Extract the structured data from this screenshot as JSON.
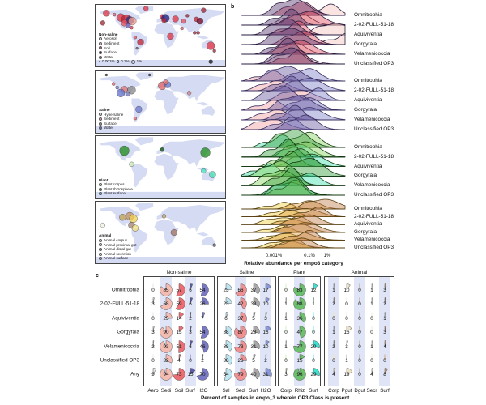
{
  "panel_labels": {
    "a": "a",
    "b": "b",
    "c": "c"
  },
  "maps": [
    {
      "title": "Non-saline",
      "legend": [
        {
          "label": "Aerosol",
          "color": "#f3ece8"
        },
        {
          "label": "Sediment",
          "color": "#f4c4bc"
        },
        {
          "label": "Soil",
          "color": "#e05060"
        },
        {
          "label": "Surface",
          "color": "#3a2a70"
        },
        {
          "label": "Water",
          "color": "#7a6ab0"
        }
      ],
      "size_legend": [
        "0.001%",
        "0.1%",
        "1%"
      ],
      "points": [
        {
          "lon": -150,
          "lat": 62,
          "c": "#e03040",
          "s": 4
        },
        {
          "lon": -128,
          "lat": 58,
          "c": "#e06070",
          "s": 2
        },
        {
          "lon": -110,
          "lat": 50,
          "c": "#e03040",
          "s": 5
        },
        {
          "lon": -95,
          "lat": 45,
          "c": "#c02030",
          "s": 6
        },
        {
          "lon": -85,
          "lat": 42,
          "c": "#2a2a80",
          "s": 5
        },
        {
          "lon": -78,
          "lat": 40,
          "c": "#f0a090",
          "s": 5
        },
        {
          "lon": -100,
          "lat": 35,
          "c": "#e05060",
          "s": 4
        },
        {
          "lon": -90,
          "lat": 28,
          "c": "#6a5ab0",
          "s": 3
        },
        {
          "lon": -80,
          "lat": 22,
          "c": "#e03040",
          "s": 2
        },
        {
          "lon": -160,
          "lat": 35,
          "c": "#a02030",
          "s": 3
        },
        {
          "lon": -70,
          "lat": -5,
          "c": "#e05060",
          "s": 2
        },
        {
          "lon": -55,
          "lat": -18,
          "c": "#c02030",
          "s": 4
        },
        {
          "lon": -65,
          "lat": -35,
          "c": "#555",
          "s": 1.5
        },
        {
          "lon": -40,
          "lat": 75,
          "c": "#e03040",
          "s": 3
        },
        {
          "lon": 5,
          "lat": 52,
          "c": "#e03040",
          "s": 3
        },
        {
          "lon": 14,
          "lat": 48,
          "c": "#1a1a80",
          "s": 5
        },
        {
          "lon": 10,
          "lat": 42,
          "c": "#c02030",
          "s": 3
        },
        {
          "lon": 42,
          "lat": 46,
          "c": "#e03040",
          "s": 4
        },
        {
          "lon": 65,
          "lat": 40,
          "c": "#e05060",
          "s": 3
        },
        {
          "lon": 75,
          "lat": 55,
          "c": "#a02030",
          "s": 2
        },
        {
          "lon": 100,
          "lat": 45,
          "c": "#c02030",
          "s": 3
        },
        {
          "lon": 110,
          "lat": 40,
          "c": "#700020",
          "s": 4
        },
        {
          "lon": 120,
          "lat": 70,
          "c": "#a02030",
          "s": 3
        },
        {
          "lon": 28,
          "lat": -2,
          "c": "#e03040",
          "s": 4
        },
        {
          "lon": 60,
          "lat": 20,
          "c": "#e05060",
          "s": 2
        },
        {
          "lon": 95,
          "lat": 8,
          "c": "#a02030",
          "s": 2
        },
        {
          "lon": 105,
          "lat": 8,
          "c": "#a02030",
          "s": 2
        },
        {
          "lon": 140,
          "lat": -28,
          "c": "#e03040",
          "s": 5
        },
        {
          "lon": 150,
          "lat": -42,
          "c": "#a02030",
          "s": 2
        },
        {
          "lon": 140,
          "lat": -72,
          "c": "#111",
          "s": 2.5
        }
      ]
    },
    {
      "title": "Saline",
      "legend": [
        {
          "label": "Hypersaline",
          "color": "#e6f0f4"
        },
        {
          "label": "Sediment",
          "color": "#f0a0a0"
        },
        {
          "label": "Surface",
          "color": "#999999"
        },
        {
          "label": "Water",
          "color": "#6a78c8"
        }
      ],
      "points": [
        {
          "lon": -130,
          "lat": 50,
          "c": "#e06070",
          "s": 2
        },
        {
          "lon": -120,
          "lat": 40,
          "c": "#8080c0",
          "s": 2
        },
        {
          "lon": -100,
          "lat": 35,
          "c": "#e07070",
          "s": 4
        },
        {
          "lon": -110,
          "lat": 25,
          "c": "#6070c8",
          "s": 5
        },
        {
          "lon": -80,
          "lat": 33,
          "c": "#888",
          "s": 5
        },
        {
          "lon": -90,
          "lat": 22,
          "c": "#7070b0",
          "s": 2.5
        },
        {
          "lon": -60,
          "lat": -20,
          "c": "#6a78c8",
          "s": 4
        },
        {
          "lon": -70,
          "lat": -45,
          "c": "#e07070",
          "s": 2
        },
        {
          "lon": 5,
          "lat": 45,
          "c": "#e06060",
          "s": 5
        },
        {
          "lon": 20,
          "lat": 48,
          "c": "#6a78c8",
          "s": 4
        },
        {
          "lon": 15,
          "lat": 55,
          "c": "#e07070",
          "s": 3
        },
        {
          "lon": 80,
          "lat": 25,
          "c": "#d08080",
          "s": 2.5
        },
        {
          "lon": -150,
          "lat": 75,
          "c": "#222",
          "s": 1.5
        },
        {
          "lon": -30,
          "lat": 75,
          "c": "#222",
          "s": 1.5
        }
      ]
    },
    {
      "title": "Plant",
      "legend": [
        {
          "label": "Plant corpus",
          "color": "#cfeec0"
        },
        {
          "label": "Plant rhizosphere",
          "color": "#2e9a2e"
        },
        {
          "label": "Plant surface",
          "color": "#40e0c0"
        }
      ],
      "points": [
        {
          "lon": -100,
          "lat": 45,
          "c": "#1a8a1a",
          "s": 6
        },
        {
          "lon": -80,
          "lat": 8,
          "c": "#c8e8b8",
          "s": 3
        },
        {
          "lon": 5,
          "lat": 48,
          "c": "#0a4a0a",
          "s": 2.5
        },
        {
          "lon": 125,
          "lat": 40,
          "c": "#1a8a1a",
          "s": 6
        },
        {
          "lon": 120,
          "lat": -10,
          "c": "#40e0c0",
          "s": 3
        },
        {
          "lon": 145,
          "lat": -20,
          "c": "#40e0b0",
          "s": 4
        }
      ]
    },
    {
      "title": "Animal",
      "legend": [
        {
          "label": "Animal corpus",
          "color": "#f7ecb0"
        },
        {
          "label": "Animal proximal gut",
          "color": "#f2e6c8"
        },
        {
          "label": "Animal distal gut",
          "color": "#b08860"
        },
        {
          "label": "Animal secretion",
          "color": "#f6f0e8"
        },
        {
          "label": "Animal surface",
          "color": "#d0a070"
        }
      ],
      "points": [
        {
          "lon": -105,
          "lat": 42,
          "c": "#c0a050",
          "s": 4
        },
        {
          "lon": -85,
          "lat": 45,
          "c": "#c09060",
          "s": 5
        },
        {
          "lon": -75,
          "lat": 38,
          "c": "#f0d050",
          "s": 5
        },
        {
          "lon": -80,
          "lat": 20,
          "c": "#a08070",
          "s": 4
        },
        {
          "lon": -70,
          "lat": 12,
          "c": "#f0e080",
          "s": 4
        },
        {
          "lon": -160,
          "lat": 20,
          "c": "#f0f0e0",
          "s": 3
        },
        {
          "lon": 10,
          "lat": 45,
          "c": "#c0a070",
          "s": 2.5
        },
        {
          "lon": 38,
          "lat": 0,
          "c": "#a07060",
          "s": 4
        },
        {
          "lon": 150,
          "lat": -35,
          "c": "#555",
          "s": 2
        }
      ]
    }
  ],
  "ridges": {
    "xlabel": "Relative abundance per empo3 category",
    "ticks": [
      {
        "label": "0.001%",
        "log": -5
      },
      {
        "label": "0.1%",
        "log": -3
      },
      {
        "label": "1%",
        "log": -2
      }
    ],
    "classes": [
      "Omnitrophia",
      "2-02-FULL-51-18",
      "Aquiviventia",
      "Gorgyraia",
      "Velamenicoccia",
      "Unclassified OP3"
    ]
  },
  "chart_data": {
    "type": "ridgeline",
    "xlabel": "Relative abundance per empo3 category",
    "x_scale": "log10 relative abundance",
    "groups": [
      {
        "name": "Non-saline",
        "colors": [
          "#f4c4bc",
          "#e05060",
          "#5a3a70",
          "#3a2a70"
        ],
        "peaks": [
          [
            -1.8,
            -3.4,
            -3.8
          ],
          [
            -3.5,
            -3.0,
            -4.0
          ],
          [
            -1.5,
            -3.6,
            -4.2
          ],
          [
            -0.9,
            -3.3,
            -4.0
          ],
          [
            -3.8,
            -3.5,
            -4.2
          ],
          [
            -3.8,
            -3.6,
            -4.0
          ]
        ]
      },
      {
        "name": "Saline",
        "colors": [
          "#f0a0a0",
          "#8080c8",
          "#6a5aa0",
          "#c8d0e8"
        ],
        "peaks": [
          [
            -5.0,
            -3.0,
            -4.2
          ],
          [
            -4.8,
            -3.0,
            -4.0
          ],
          [
            -3.5,
            -2.5,
            -4.5
          ],
          [
            -5.0,
            -3.0,
            -3.6
          ],
          [
            -4.8,
            -3.0,
            -3.8
          ],
          [
            -5.0,
            -4.0,
            -3.2
          ]
        ]
      },
      {
        "name": "Plant",
        "colors": [
          "#40e0b0",
          "#8ad060",
          "#3aa040",
          "#a0d080"
        ],
        "peaks": [
          [
            -4.5,
            -3.0,
            -3.8
          ],
          [
            -3.5,
            -3.2,
            -4.2
          ],
          [
            -2.9,
            -4.0,
            -3.5
          ],
          [
            -5.2,
            -4.6,
            -3.0
          ],
          [
            -3.0,
            -4.5,
            -4.0
          ],
          [
            -4.0,
            -3.8,
            -3.9
          ]
        ]
      },
      {
        "name": "Animal",
        "colors": [
          "#f0d040",
          "#e0a040",
          "#c08050",
          "#f4e080"
        ],
        "peaks": [
          [
            -4.4,
            -3.0,
            -2.1
          ],
          [
            -4.2,
            -3.2,
            -2.5
          ],
          [
            -4.4,
            -3.6,
            -3.0
          ],
          [
            -4.5,
            -3.5,
            -3.2
          ],
          [
            -4.3,
            -3.6,
            -3.0
          ],
          [
            -4.2,
            -3.8,
            -3.4
          ]
        ]
      }
    ]
  },
  "table": {
    "title": "Percent of samples in empo_3 wherein OP3 Class is present",
    "rows": [
      "Omnitrophia",
      "2-02-FULL-51-18",
      "Aquiviventia",
      "Gorgyraia",
      "Velamenicoccia",
      "Unclassified OP3",
      "Any"
    ],
    "groups": [
      {
        "name": "Non-saline",
        "columns": [
          {
            "label": "Aero",
            "color": "#e8e0e0",
            "values": [
              0,
              3,
              0,
              3,
              2,
              0,
              9
            ]
          },
          {
            "label": "Sedi",
            "color": "#f2bcb2",
            "values": [
              85,
              68,
              25,
              90,
              93,
              32,
              94
            ]
          },
          {
            "label": "Soil",
            "color": "#ea6e74",
            "values": [
              57,
              59,
              14,
              13,
              51,
              4,
              73
            ]
          },
          {
            "label": "Surf",
            "color": "#5c5ca8",
            "values": [
              6,
              6,
              2,
              3,
              6,
              0,
              15
            ]
          },
          {
            "label": "H2O",
            "color": "#7a7ac4",
            "values": [
              54,
              26,
              7,
              54,
              46,
              2,
              70
            ]
          }
        ]
      },
      {
        "name": "Saline",
        "columns": [
          {
            "label": "Sal",
            "color": "#bfe6f0",
            "values": [
              23,
              23,
              6,
              38,
              38,
              38,
              54
            ]
          },
          {
            "label": "Sedi",
            "color": "#f09090",
            "values": [
              66,
              42,
              37,
              87,
              73,
              26,
              79
            ]
          },
          {
            "label": "Surf",
            "color": "#a8a8a8",
            "values": [
              37,
              33,
              5,
              28,
              31,
              5,
              40
            ]
          },
          {
            "label": "H2O",
            "color": "#8898d8",
            "values": [
              17,
              10,
              3,
              16,
              10,
              2,
              31
            ]
          }
        ]
      },
      {
        "name": "Plant",
        "columns": [
          {
            "label": "Corp",
            "color": "#c8eab8",
            "values": [
              0,
              1,
              1,
              0,
              1,
              0,
              3
            ]
          },
          {
            "label": "Rhiz",
            "color": "#6cbf6c",
            "values": [
              83,
              88,
              36,
              47,
              77,
              15,
              96
            ]
          },
          {
            "label": "Surf",
            "color": "#40e0d0",
            "values": [
              12,
              1,
              0,
              0,
              29,
              0,
              29
            ]
          }
        ]
      },
      {
        "name": "Animal",
        "columns": [
          {
            "label": "Corp",
            "color": "#f2e6a8",
            "values": [
              1,
              2,
              0,
              1,
              2,
              0,
              4
            ]
          },
          {
            "label": "Pgut",
            "color": "#ece2c8",
            "values": [
              10,
              0,
              0,
              15,
              3,
              1,
              19
            ]
          },
          {
            "label": "Dgut",
            "color": "#a88868",
            "values": [
              0,
              0,
              0,
              0,
              0,
              0,
              0
            ]
          },
          {
            "label": "Secr",
            "color": "#efe6d8",
            "values": [
              1,
              1,
              0,
              0,
              1,
              0,
              4
            ]
          },
          {
            "label": "Surf",
            "color": "#d09868",
            "values": [
              3,
              2,
              1,
              3,
              4,
              0,
              8
            ]
          }
        ]
      }
    ]
  }
}
